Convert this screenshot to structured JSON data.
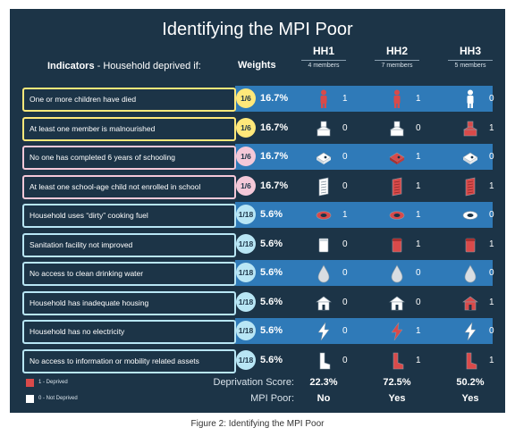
{
  "title": "Identifying the MPI Poor",
  "indicators_header": "Indicators",
  "indicators_subheader": "- Household deprived if:",
  "weights_header": "Weights",
  "households": [
    {
      "name": "HH1",
      "members": "4 members"
    },
    {
      "name": "HH2",
      "members": "7 members"
    },
    {
      "name": "HH3",
      "members": "5 members"
    }
  ],
  "colors": {
    "panel": "#1c3447",
    "stripe": "#2f7ab8",
    "deprived": "#d94a4a",
    "not_deprived": "#ffffff",
    "health": "#ffe87a",
    "education": "#f4c8d8",
    "living": "#b8e6f5"
  },
  "chart_data": {
    "type": "table",
    "title": "Identifying the MPI Poor",
    "columns": [
      "HH1",
      "HH2",
      "HH3"
    ],
    "rows": [
      {
        "indicator": "One or more children have died",
        "weight": "1/6",
        "pct": "16.7%",
        "group": "health",
        "icon": "person-icon",
        "values": [
          1,
          1,
          0
        ]
      },
      {
        "indicator": "At least one member is malnourished",
        "weight": "1/6",
        "pct": "16.7%",
        "group": "health",
        "icon": "food-icon",
        "values": [
          0,
          0,
          1
        ]
      },
      {
        "indicator": "No one has completed 6 years of schooling",
        "weight": "1/6",
        "pct": "16.7%",
        "group": "education",
        "icon": "book-icon",
        "values": [
          0,
          1,
          0
        ]
      },
      {
        "indicator": "At least one school-age child not enrolled in school",
        "weight": "1/6",
        "pct": "16.7%",
        "group": "education",
        "icon": "notebook-icon",
        "values": [
          0,
          1,
          1
        ]
      },
      {
        "indicator": "Household uses “dirty” cooking fuel",
        "weight": "1/18",
        "pct": "5.6%",
        "group": "living",
        "icon": "fuel-ring-icon",
        "values": [
          1,
          1,
          0
        ]
      },
      {
        "indicator": "Sanitation facility not improved",
        "weight": "1/18",
        "pct": "5.6%",
        "group": "living",
        "icon": "toilet-icon",
        "values": [
          0,
          1,
          1
        ]
      },
      {
        "indicator": "No access to clean drinking water",
        "weight": "1/18",
        "pct": "5.6%",
        "group": "living",
        "icon": "water-drop-icon",
        "values": [
          0,
          0,
          0
        ]
      },
      {
        "indicator": "Household has inadequate housing",
        "weight": "1/18",
        "pct": "5.6%",
        "group": "living",
        "icon": "house-icon",
        "values": [
          0,
          0,
          1
        ]
      },
      {
        "indicator": "Household has no electricity",
        "weight": "1/18",
        "pct": "5.6%",
        "group": "living",
        "icon": "lightning-icon",
        "values": [
          0,
          1,
          0
        ]
      },
      {
        "indicator": "No access to information or mobility related assets",
        "weight": "1/18",
        "pct": "5.6%",
        "group": "living",
        "icon": "boot-icon",
        "values": [
          0,
          1,
          1
        ]
      }
    ],
    "legend": [
      {
        "label": "1 - Deprived",
        "color": "#d94a4a"
      },
      {
        "label": "0 - Not Deprived",
        "color": "#ffffff"
      }
    ],
    "deprivation_score_label": "Deprivation Score:",
    "deprivation_scores": [
      "22.3%",
      "72.5%",
      "50.2%"
    ],
    "mpi_poor_label": "MPI Poor:",
    "mpi_poor": [
      "No",
      "Yes",
      "Yes"
    ]
  },
  "caption": "Figure 2: Identifying the MPI Poor"
}
